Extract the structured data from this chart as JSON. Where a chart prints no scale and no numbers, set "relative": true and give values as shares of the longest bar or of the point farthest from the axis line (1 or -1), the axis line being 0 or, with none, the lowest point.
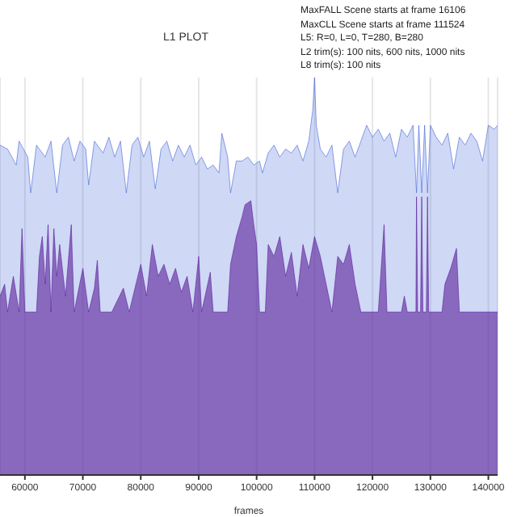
{
  "chart_data": {
    "type": "area",
    "title": "L1 PLOT",
    "xlabel": "frames",
    "relative": true,
    "grid": "x",
    "legend": false,
    "annotations": [
      "MaxFALL Scene starts at frame 16106",
      "MaxCLL Scene starts at frame 111524",
      "L5: R=0, L=0, T=280, B=280",
      "L2 trim(s): 100 nits, 600 nits, 1000 nits",
      "L8 trim(s): 100 nits"
    ],
    "xlim": [
      55700,
      141600
    ],
    "xticks": [
      60000,
      70000,
      80000,
      90000,
      100000,
      110000,
      120000,
      130000,
      140000
    ],
    "series": [
      {
        "color": "#3f63d8",
        "x": [
          55700,
          57000,
          58500,
          59000,
          60500,
          61000,
          62000,
          63500,
          64500,
          65500,
          66500,
          67500,
          68500,
          69500,
          70500,
          71000,
          72000,
          73500,
          74500,
          75500,
          76500,
          77500,
          78500,
          79500,
          80500,
          81500,
          82500,
          83500,
          84500,
          85500,
          86500,
          87500,
          88500,
          89500,
          90500,
          91500,
          92500,
          93500,
          94000,
          95000,
          95500,
          96500,
          97500,
          98500,
          99500,
          100500,
          101000,
          102000,
          103000,
          104000,
          105000,
          106000,
          107000,
          108000,
          109000,
          109700,
          110000,
          110300,
          111000,
          112000,
          113000,
          114000,
          115000,
          116000,
          117000,
          118000,
          119000,
          120000,
          121000,
          122000,
          123000,
          124000,
          125000,
          126000,
          127000,
          127600,
          128000,
          128500,
          129000,
          129500,
          130000,
          131000,
          132000,
          133000,
          134000,
          135000,
          136000,
          137000,
          138000,
          139000,
          140000,
          141000,
          141600
        ],
        "values": [
          0.83,
          0.82,
          0.78,
          0.84,
          0.8,
          0.71,
          0.83,
          0.8,
          0.84,
          0.71,
          0.83,
          0.85,
          0.79,
          0.84,
          0.82,
          0.73,
          0.84,
          0.81,
          0.85,
          0.8,
          0.84,
          0.71,
          0.83,
          0.85,
          0.8,
          0.84,
          0.72,
          0.82,
          0.84,
          0.79,
          0.83,
          0.8,
          0.83,
          0.78,
          0.8,
          0.77,
          0.78,
          0.76,
          0.86,
          0.8,
          0.71,
          0.79,
          0.79,
          0.8,
          0.78,
          0.79,
          0.76,
          0.81,
          0.83,
          0.8,
          0.82,
          0.81,
          0.83,
          0.79,
          0.84,
          0.92,
          1,
          0.88,
          0.82,
          0.8,
          0.83,
          0.71,
          0.82,
          0.84,
          0.8,
          0.84,
          0.88,
          0.85,
          0.87,
          0.84,
          0.86,
          0.8,
          0.87,
          0.85,
          0.88,
          0.71,
          0.88,
          0.71,
          0.88,
          0.71,
          0.88,
          0.85,
          0.83,
          0.86,
          0.77,
          0.85,
          0.83,
          0.86,
          0.84,
          0.79,
          0.88,
          0.87,
          0.88
        ]
      },
      {
        "color": "#5a1f9a",
        "x": [
          55700,
          56500,
          57000,
          58000,
          59000,
          59500,
          60000,
          62000,
          62500,
          63000,
          63500,
          64000,
          64500,
          65000,
          65500,
          66000,
          67000,
          68000,
          68500,
          70000,
          71000,
          72000,
          72500,
          73000,
          75000,
          77000,
          78000,
          79000,
          80000,
          81000,
          82000,
          83000,
          84000,
          85000,
          86000,
          87000,
          88000,
          89000,
          90000,
          90500,
          92000,
          92500,
          95000,
          95500,
          96500,
          97500,
          98000,
          99000,
          99500,
          100000,
          100500,
          101500,
          102000,
          103000,
          104000,
          105000,
          106000,
          107000,
          108000,
          109000,
          110000,
          111000,
          112000,
          113000,
          114000,
          115000,
          116000,
          117000,
          118000,
          121000,
          122000,
          122500,
          125000,
          125500,
          126000,
          127500,
          127600,
          127800,
          128300,
          128500,
          128700,
          129300,
          129500,
          129700,
          130000,
          132000,
          132500,
          133500,
          134500,
          135000,
          136000,
          141600
        ],
        "values": [
          0.45,
          0.48,
          0.41,
          0.5,
          0.41,
          0.62,
          0.41,
          0.41,
          0.55,
          0.6,
          0.48,
          0.63,
          0.41,
          0.62,
          0.5,
          0.58,
          0.45,
          0.63,
          0.41,
          0.52,
          0.41,
          0.47,
          0.54,
          0.41,
          0.41,
          0.47,
          0.41,
          0.47,
          0.53,
          0.45,
          0.58,
          0.5,
          0.53,
          0.48,
          0.52,
          0.46,
          0.5,
          0.41,
          0.55,
          0.41,
          0.51,
          0.41,
          0.41,
          0.53,
          0.6,
          0.65,
          0.68,
          0.69,
          0.63,
          0.58,
          0.41,
          0.41,
          0.58,
          0.55,
          0.6,
          0.5,
          0.56,
          0.45,
          0.58,
          0.52,
          0.6,
          0.55,
          0.48,
          0.41,
          0.55,
          0.53,
          0.58,
          0.48,
          0.41,
          0.41,
          0.63,
          0.41,
          0.41,
          0.45,
          0.41,
          0.41,
          0.7,
          0.41,
          0.41,
          0.7,
          0.41,
          0.41,
          0.7,
          0.41,
          0.41,
          0.41,
          0.48,
          0.52,
          0.57,
          0.41,
          0.41,
          0.41
        ]
      }
    ]
  }
}
